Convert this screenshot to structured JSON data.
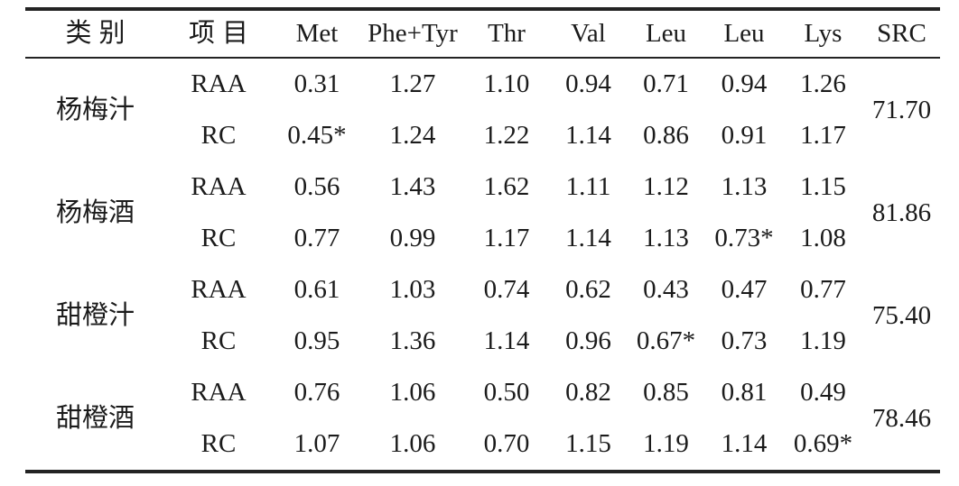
{
  "colors": {
    "background": "#ffffff",
    "text": "#1b1b1b",
    "rule": "#232323"
  },
  "table": {
    "headers": {
      "category": "类别",
      "item": "项目",
      "met": "Met",
      "phe_tyr": "Phe+Tyr",
      "thr": "Thr",
      "val": "Val",
      "leu1": "Leu",
      "leu2": "Leu",
      "lys": "Lys",
      "src": "SRC"
    },
    "groups": [
      {
        "category": "杨梅汁",
        "src": "71.70",
        "rows": [
          {
            "item": "RAA",
            "values": [
              "0.31",
              "1.27",
              "1.10",
              "0.94",
              "0.71",
              "0.94",
              "1.26"
            ]
          },
          {
            "item": "RC",
            "values": [
              "0.45*",
              "1.24",
              "1.22",
              "1.14",
              "0.86",
              "0.91",
              "1.17"
            ]
          }
        ]
      },
      {
        "category": "杨梅酒",
        "src": "81.86",
        "rows": [
          {
            "item": "RAA",
            "values": [
              "0.56",
              "1.43",
              "1.62",
              "1.11",
              "1.12",
              "1.13",
              "1.15"
            ]
          },
          {
            "item": "RC",
            "values": [
              "0.77",
              "0.99",
              "1.17",
              "1.14",
              "1.13",
              "0.73*",
              "1.08"
            ]
          }
        ]
      },
      {
        "category": "甜橙汁",
        "src": "75.40",
        "rows": [
          {
            "item": "RAA",
            "values": [
              "0.61",
              "1.03",
              "0.74",
              "0.62",
              "0.43",
              "0.47",
              "0.77"
            ]
          },
          {
            "item": "RC",
            "values": [
              "0.95",
              "1.36",
              "1.14",
              "0.96",
              "0.67*",
              "0.73",
              "1.19"
            ]
          }
        ]
      },
      {
        "category": "甜橙酒",
        "src": "78.46",
        "rows": [
          {
            "item": "RAA",
            "values": [
              "0.76",
              "1.06",
              "0.50",
              "0.82",
              "0.85",
              "0.81",
              "0.49"
            ]
          },
          {
            "item": "RC",
            "values": [
              "1.07",
              "1.06",
              "0.70",
              "1.15",
              "1.19",
              "1.14",
              "0.69*"
            ]
          }
        ]
      }
    ]
  }
}
